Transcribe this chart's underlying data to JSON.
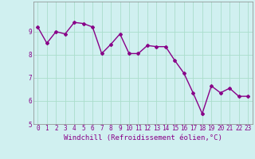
{
  "x": [
    0,
    1,
    2,
    3,
    4,
    5,
    6,
    7,
    8,
    9,
    10,
    11,
    12,
    13,
    14,
    15,
    16,
    17,
    18,
    19,
    20,
    21,
    22,
    23
  ],
  "y": [
    9.2,
    8.5,
    9.0,
    8.9,
    9.4,
    9.35,
    9.2,
    8.05,
    8.45,
    8.9,
    8.05,
    8.05,
    8.4,
    8.35,
    8.35,
    7.75,
    7.2,
    6.35,
    5.45,
    6.65,
    6.35,
    6.55,
    6.2,
    6.2
  ],
  "line_color": "#880088",
  "marker": "D",
  "marker_size": 2.0,
  "line_width": 1.0,
  "bg_color": "#d0f0f0",
  "grid_color": "#aaddcc",
  "xlabel": "Windchill (Refroidissement éolien,°C)",
  "xlabel_color": "#880088",
  "ylim": [
    5,
    10
  ],
  "xlim": [
    -0.5,
    23.5
  ],
  "yticks": [
    5,
    6,
    7,
    8,
    9
  ],
  "xticks": [
    0,
    1,
    2,
    3,
    4,
    5,
    6,
    7,
    8,
    9,
    10,
    11,
    12,
    13,
    14,
    15,
    16,
    17,
    18,
    19,
    20,
    21,
    22,
    23
  ],
  "tick_label_size": 5.5,
  "xlabel_fontsize": 6.5,
  "spine_color": "#888888"
}
